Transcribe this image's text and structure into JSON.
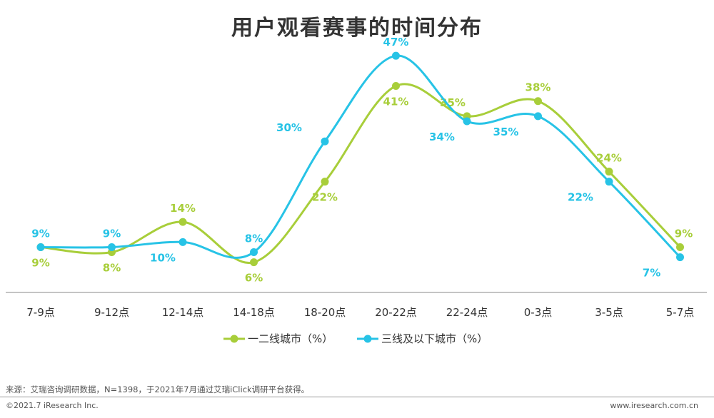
{
  "title": "用户观看赛事的时间分布",
  "source_note": "来源：艾瑞咨询调研数据，N=1398，于2021年7月通过艾瑞iClick调研平台获得。",
  "copyright": "©2021.7 iResearch Inc.",
  "website": "www.iresearch.com.cn",
  "chart_data": {
    "type": "line",
    "title": "用户观看赛事的时间分布",
    "categories": [
      "7-9点",
      "9-12点",
      "12-14点",
      "14-18点",
      "18-20点",
      "20-22点",
      "22-24点",
      "0-3点",
      "3-5点",
      "5-7点"
    ],
    "series": [
      {
        "name": "一二线城市（%）",
        "color": "#A8CE3A",
        "values": [
          9,
          8,
          14,
          6,
          22,
          41,
          35,
          38,
          24,
          9
        ],
        "labels": [
          "9%",
          "8%",
          "14%",
          "6%",
          "22%",
          "41%",
          "35%",
          "38%",
          "24%",
          "9%"
        ]
      },
      {
        "name": "三线及以下城市（%）",
        "color": "#27C3E6",
        "values": [
          9,
          9,
          10,
          8,
          30,
          47,
          34,
          35,
          22,
          7
        ],
        "labels": [
          "9%",
          "9%",
          "10%",
          "8%",
          "30%",
          "47%",
          "34%",
          "35%",
          "22%",
          "7%"
        ]
      }
    ],
    "ylim": [
      0,
      50
    ],
    "grid": false,
    "smooth": true,
    "legend": "bottom-center"
  }
}
